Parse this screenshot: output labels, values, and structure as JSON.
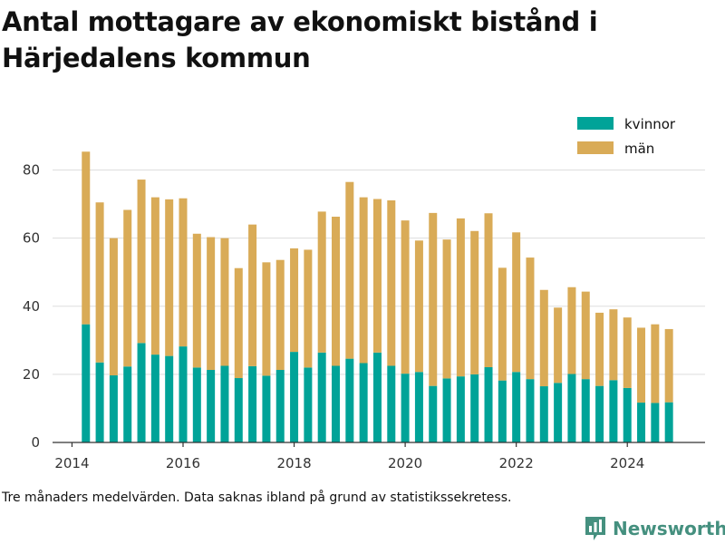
{
  "chart_data": {
    "type": "bar",
    "stacked": true,
    "title": "Antal mottagare av ekonomiskt bistånd i Härjedalens kommun",
    "xlabel": "",
    "ylabel": "",
    "ylim": [
      0,
      90
    ],
    "yticks": [
      0,
      20,
      40,
      60,
      80
    ],
    "xlim": [
      2013.65,
      2025.4
    ],
    "xticks": [
      2014,
      2016,
      2018,
      2020,
      2022,
      2024
    ],
    "grid": true,
    "legend_position": "top-right",
    "x": [
      2014.25,
      2014.5,
      2014.75,
      2015.0,
      2015.25,
      2015.5,
      2015.75,
      2016.0,
      2016.25,
      2016.5,
      2016.75,
      2017.0,
      2017.25,
      2017.5,
      2017.75,
      2018.0,
      2018.25,
      2018.5,
      2018.75,
      2019.0,
      2019.25,
      2019.5,
      2019.75,
      2020.0,
      2020.25,
      2020.5,
      2020.75,
      2021.0,
      2021.25,
      2021.5,
      2021.75,
      2022.0,
      2022.25,
      2022.5,
      2022.75,
      2023.0,
      2023.25,
      2023.5,
      2023.75,
      2024.0,
      2024.25,
      2024.5,
      2024.75
    ],
    "series": [
      {
        "name": "kvinnor",
        "color": "#00a398",
        "values": [
          34.7,
          23.5,
          19.7,
          22.3,
          29.2,
          25.8,
          25.4,
          28.2,
          22,
          21.3,
          22.5,
          18.9,
          22.4,
          19.6,
          21.3,
          26.6,
          22,
          26.4,
          22.5,
          24.6,
          23.3,
          26.4,
          22.5,
          20.2,
          20.7,
          16.6,
          18.8,
          19.4,
          20,
          22.1,
          18.2,
          20.7,
          18.6,
          16.5,
          17.5,
          20.1,
          18.6,
          16.6,
          18.3,
          16,
          11.7,
          11.6,
          11.8
        ]
      },
      {
        "name": "män",
        "color": "#d9ab57",
        "values": [
          50.7,
          47,
          40.3,
          46,
          48,
          46.2,
          46,
          43.5,
          39.3,
          39,
          37.5,
          32.3,
          41.6,
          33.3,
          32.3,
          30.4,
          34.6,
          41.4,
          43.8,
          51.9,
          48.7,
          45.1,
          48.6,
          45,
          38.6,
          50.8,
          40.8,
          46.4,
          42.1,
          45.2,
          33.1,
          41,
          35.7,
          28.3,
          22.1,
          25.5,
          25.7,
          21.5,
          20.8,
          20.7,
          22,
          23.1,
          21.5
        ]
      }
    ]
  },
  "footnote": "Tre månaders medelvärden. Data saknas ibland på grund av statistikssekretess.",
  "brand": {
    "name": "Newsworthy",
    "icon": "newsworthy-logo-icon",
    "color": "#45907f"
  }
}
